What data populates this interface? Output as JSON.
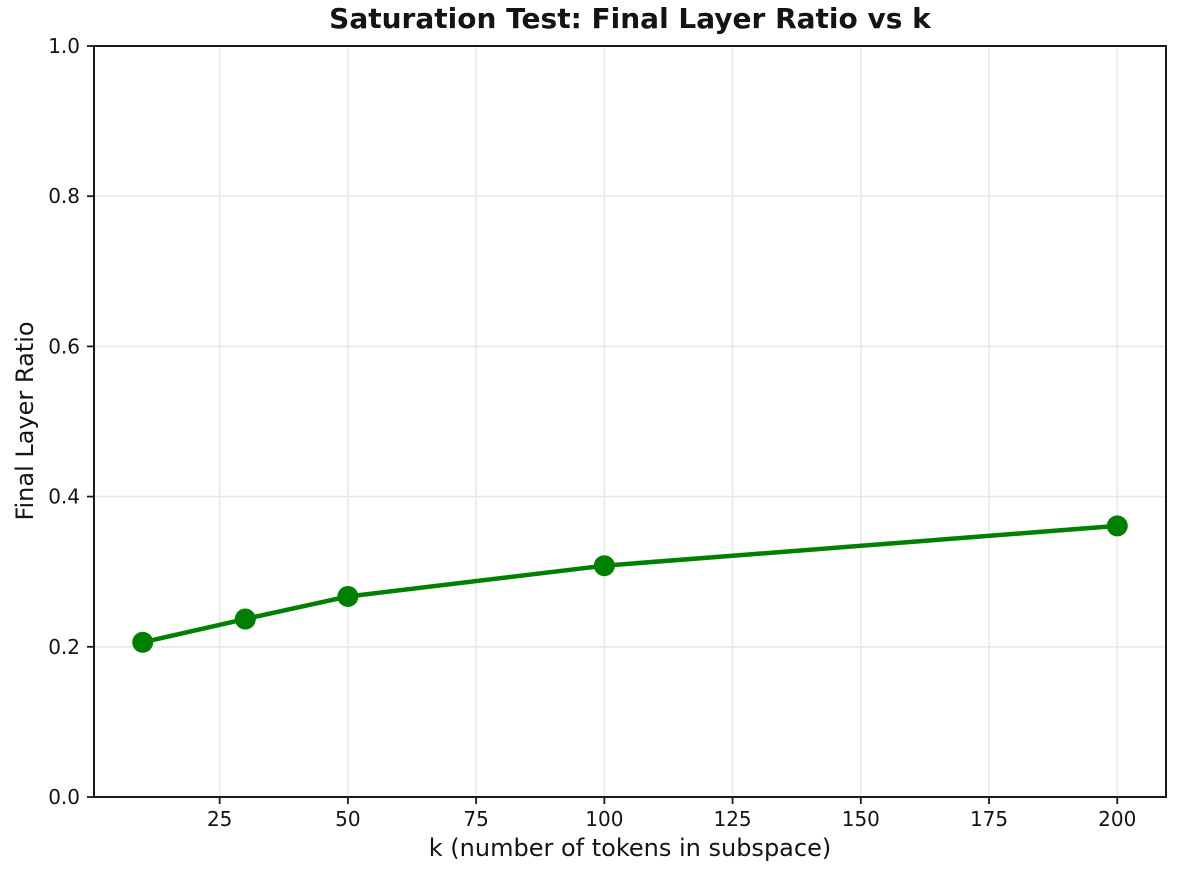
{
  "figure": {
    "background": "#ffffff"
  },
  "chart_data": {
    "type": "line",
    "title": "Saturation Test: Final Layer Ratio vs k",
    "xlabel": "k (number of tokens in subspace)",
    "ylabel": "Final Layer Ratio",
    "series": [
      {
        "name": "Final Layer Ratio",
        "x": [
          10,
          30,
          50,
          100,
          200
        ],
        "y": [
          0.206,
          0.237,
          0.267,
          0.308,
          0.361
        ]
      }
    ],
    "xlim": [
      0.5,
      209.5
    ],
    "ylim": [
      0.0,
      1.0
    ],
    "xticks": [
      25,
      50,
      75,
      100,
      125,
      150,
      175,
      200
    ],
    "ytick_values": [
      0.0,
      0.2,
      0.4,
      0.6,
      0.8,
      1.0
    ],
    "ytick_labels": [
      "0.0",
      "0.2",
      "0.4",
      "0.6",
      "0.8",
      "1.0"
    ],
    "grid": true,
    "legend_visible": false,
    "line_color": "#008000",
    "marker": "circle",
    "marker_radius": 10.5,
    "line_width": 4.5,
    "grid_color": "#e8e8e8",
    "grid_width": 1.6,
    "axis_color": "#1a1a1a",
    "spine_width": 2,
    "tick_length": 7,
    "tick_width": 1.8,
    "text_color": "#141414"
  }
}
